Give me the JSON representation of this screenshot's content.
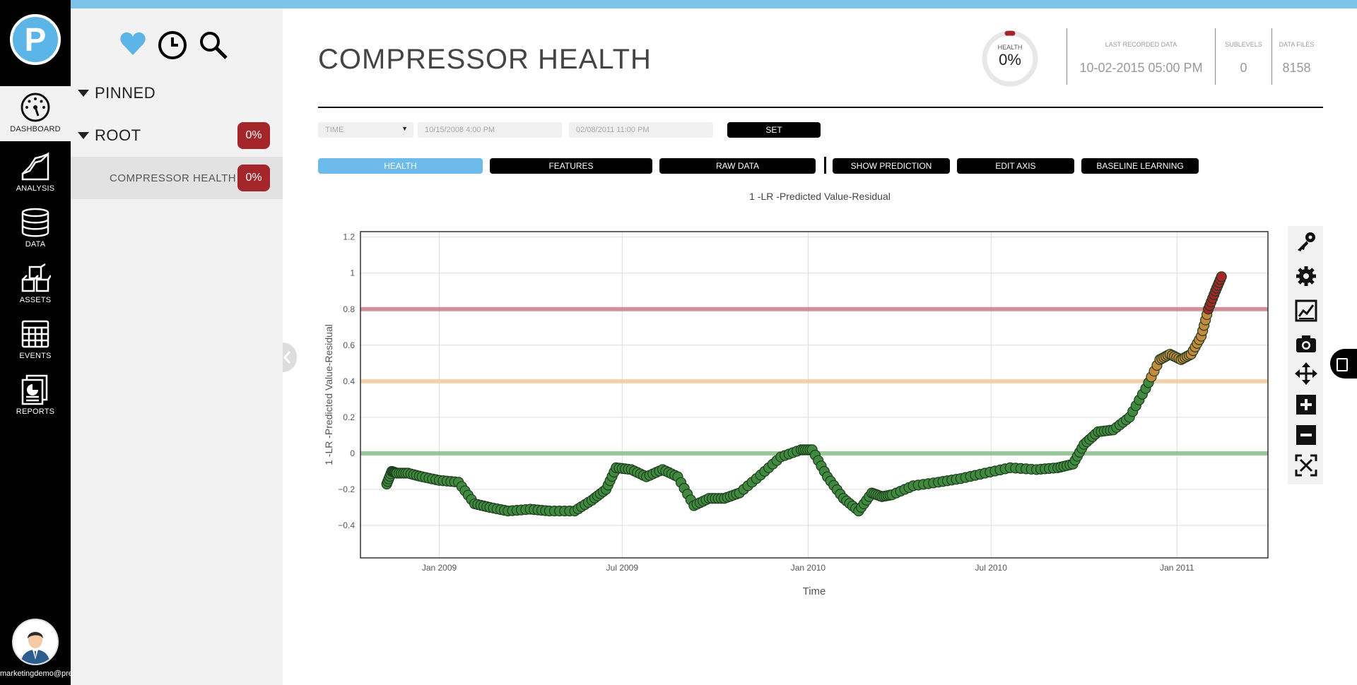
{
  "nav": {
    "items": [
      {
        "label": "DASHBOARD"
      },
      {
        "label": "ANALYSIS"
      },
      {
        "label": "DATA"
      },
      {
        "label": "ASSETS"
      },
      {
        "label": "EVENTS"
      },
      {
        "label": "REPORTS"
      }
    ],
    "logo_letter": "P",
    "user_email": "marketingdemo@predictronics.com"
  },
  "tree": {
    "toolbar_icons": [
      "heart-icon",
      "clock-icon",
      "search-icon"
    ],
    "pinned_label": "PINNED",
    "root_label": "ROOT",
    "root_badge": "0%",
    "child_label": "COMPRESSOR HEALTH",
    "child_badge": "0%"
  },
  "header": {
    "title": "COMPRESSOR HEALTH",
    "health_caption": "HEALTH",
    "health_value": "0%",
    "health_fraction": 0.0,
    "last_recorded_caption": "LAST RECORDED DATA",
    "last_recorded_value": "10-02-2015 05:00 PM",
    "sublevels_caption": "SUBLEVELS",
    "sublevels_value": "0",
    "datafiles_caption": "DATA FILES",
    "datafiles_value": "8158"
  },
  "filters": {
    "select_value": "TIME",
    "start_placeholder": "10/15/2008 4:00 PM",
    "end_placeholder": "02/08/2011 11:00 PM",
    "set_label": "SET"
  },
  "tabs": [
    {
      "label": "HEALTH",
      "selected": true
    },
    {
      "label": "FEATURES"
    },
    {
      "label": "RAW DATA"
    },
    {
      "label": "SHOW PREDICTION"
    },
    {
      "label": "EDIT AXIS"
    },
    {
      "label": "BASELINE LEARNING"
    }
  ],
  "toolbox_icons": [
    "key-icon",
    "gear-icon",
    "line-chart-icon",
    "camera-icon",
    "move-icon",
    "zoom-in-icon",
    "zoom-out-icon",
    "fit-icon"
  ],
  "colors": {
    "accent": "#6cbbeb",
    "danger": "#a4252a",
    "good": "#3f8a3f",
    "warn": "#e0a64a"
  },
  "chart_data": {
    "type": "scatter",
    "title": "1 -LR -Predicted Value-Residual",
    "xlabel": "Time",
    "ylabel": "1 -LR -Predicted Value-Residual",
    "xlim": [
      "2008-10-15",
      "2011-04-01"
    ],
    "ylim": [
      -0.58,
      1.23
    ],
    "yticks": [
      1.2,
      1,
      0.8,
      0.6,
      0.4,
      0.2,
      0,
      -0.2,
      -0.4
    ],
    "ytick_labels": [
      "1.2",
      "1",
      "0.8",
      "0.6",
      "0.4",
      "0.2",
      "0",
      "−0.2",
      "−0.4"
    ],
    "xticks": [
      "2009-01-01",
      "2009-07-01",
      "2010-01-01",
      "2010-07-01",
      "2011-01-01"
    ],
    "xtick_labels": [
      "Jan 2009",
      "Jul 2009",
      "Jan 2010",
      "Jul 2010",
      "Jan 2011"
    ],
    "grid": true,
    "thresholds": [
      {
        "value": 0.8,
        "color": "#c0707a"
      },
      {
        "value": 0.4,
        "color": "#f1c690"
      },
      {
        "value": 0.0,
        "color": "#7ab87a"
      }
    ],
    "series": [
      {
        "x": [
          "2008-11-10",
          "2008-11-15",
          "2008-11-20",
          "2008-12-01",
          "2008-12-15",
          "2009-01-01",
          "2009-01-20",
          "2009-02-05",
          "2009-02-20",
          "2009-03-10",
          "2009-04-01",
          "2009-04-20",
          "2009-05-15",
          "2009-06-01",
          "2009-06-15",
          "2009-06-25",
          "2009-07-10",
          "2009-07-25",
          "2009-08-10",
          "2009-08-25",
          "2009-09-10",
          "2009-09-25",
          "2009-10-10",
          "2009-10-25",
          "2009-11-15",
          "2009-12-05",
          "2009-12-25",
          "2010-01-05",
          "2010-01-20",
          "2010-02-05",
          "2010-02-20",
          "2010-03-05",
          "2010-03-15",
          "2010-03-25",
          "2010-04-15",
          "2010-05-10",
          "2010-06-01",
          "2010-06-25",
          "2010-07-20",
          "2010-08-15",
          "2010-09-05",
          "2010-09-20",
          "2010-10-01",
          "2010-10-15",
          "2010-10-30",
          "2010-11-15",
          "2010-12-01",
          "2010-12-15",
          "2010-12-25",
          "2011-01-05",
          "2011-01-15",
          "2011-01-25",
          "2011-02-01",
          "2011-02-08",
          "2011-02-14"
        ],
        "y": [
          -0.17,
          -0.1,
          -0.11,
          -0.11,
          -0.13,
          -0.15,
          -0.16,
          -0.28,
          -0.3,
          -0.32,
          -0.31,
          -0.32,
          -0.32,
          -0.26,
          -0.2,
          -0.08,
          -0.09,
          -0.13,
          -0.09,
          -0.13,
          -0.29,
          -0.25,
          -0.25,
          -0.22,
          -0.12,
          -0.02,
          0.02,
          0.02,
          -0.13,
          -0.25,
          -0.32,
          -0.22,
          -0.24,
          -0.23,
          -0.18,
          -0.16,
          -0.14,
          -0.11,
          -0.08,
          -0.09,
          -0.08,
          -0.06,
          0.05,
          0.12,
          0.13,
          0.2,
          0.36,
          0.52,
          0.55,
          0.52,
          0.55,
          0.65,
          0.8,
          0.9,
          0.98
        ]
      }
    ]
  }
}
